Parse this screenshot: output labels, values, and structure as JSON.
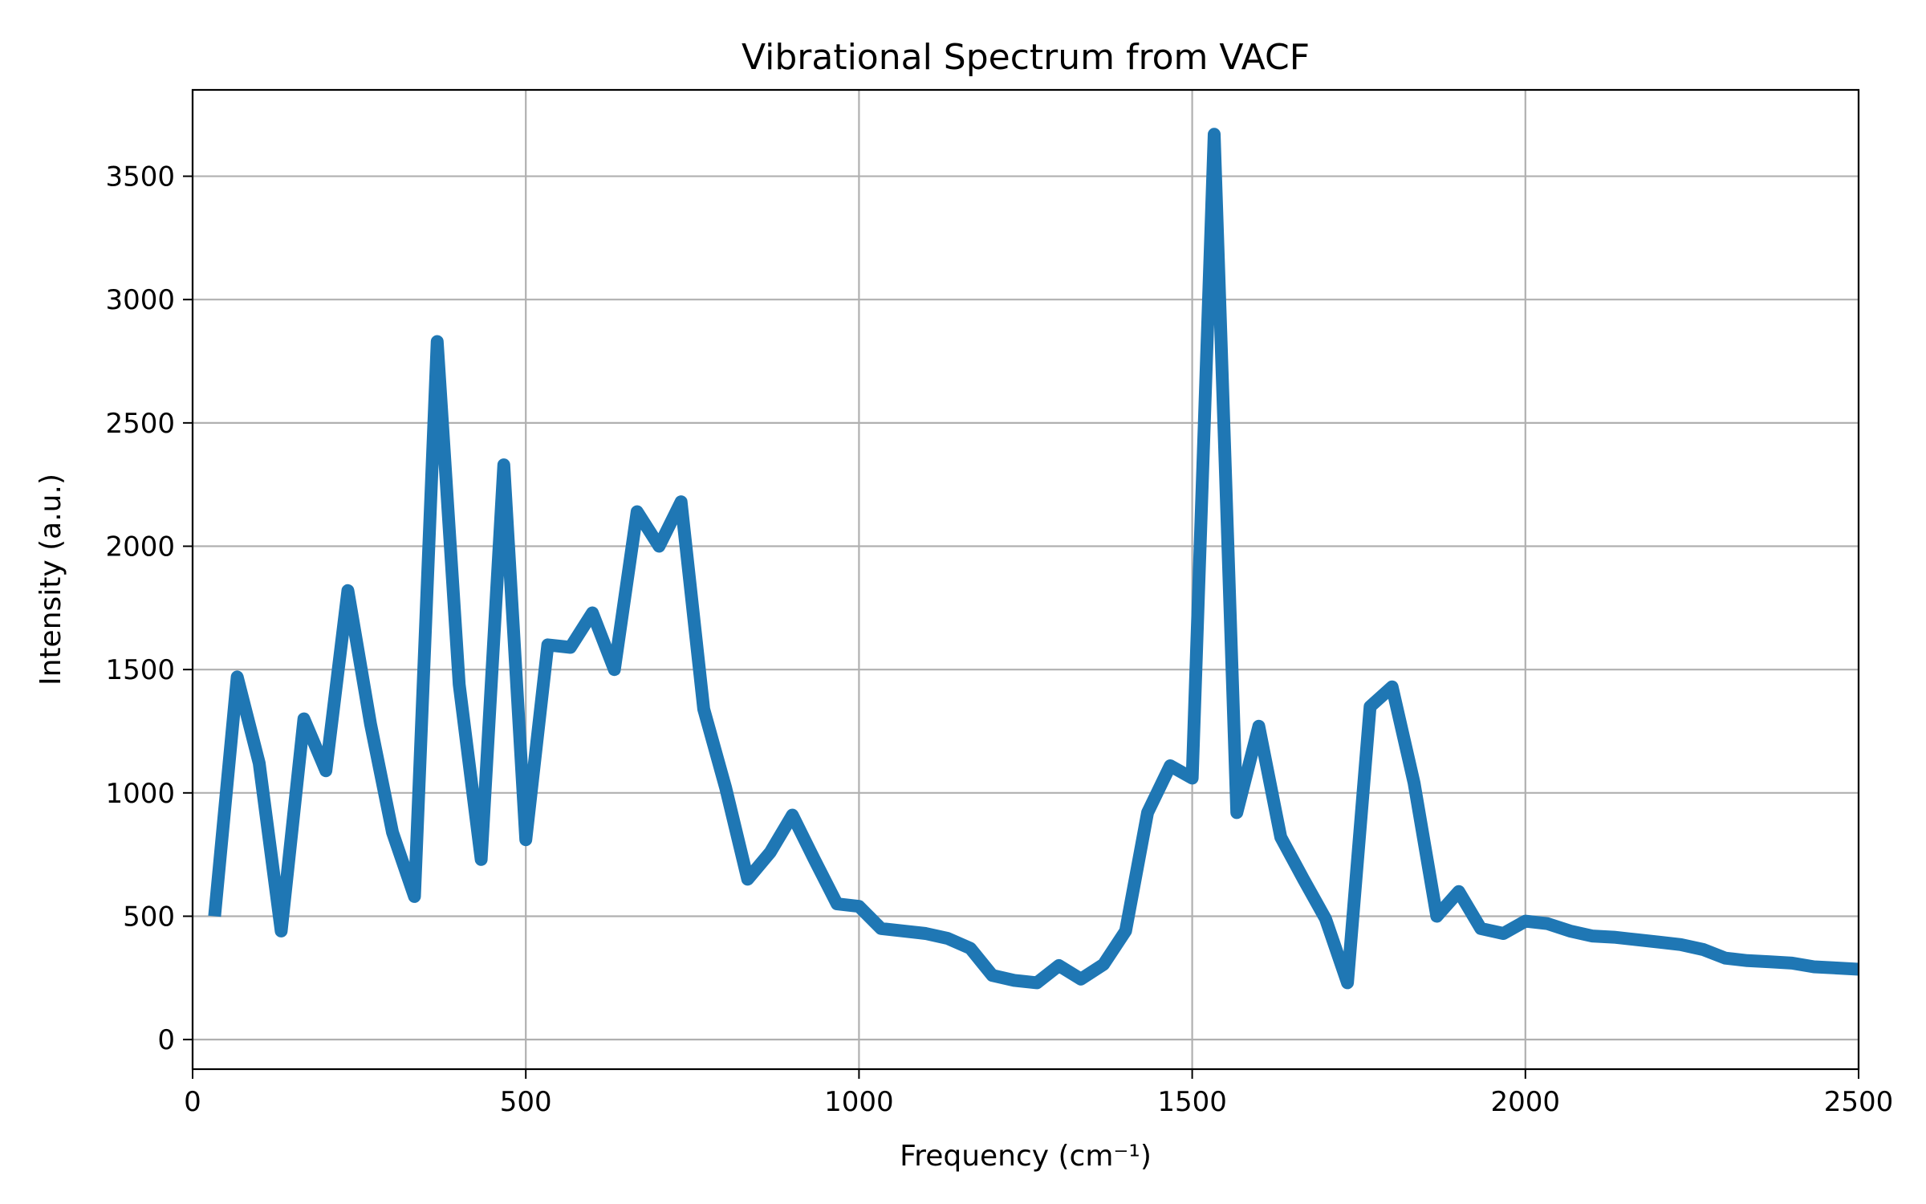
{
  "chart_data": {
    "type": "line",
    "title": "Vibrational Spectrum from VACF",
    "xlabel": "Frequency (cm⁻¹)",
    "ylabel": "Intensity (a.u.)",
    "xlim": [
      0,
      2500
    ],
    "ylim": [
      -120,
      3850
    ],
    "xticks": [
      0,
      500,
      1000,
      1500,
      2000,
      2500
    ],
    "yticks": [
      0,
      500,
      1000,
      1500,
      2000,
      2500,
      3000,
      3500
    ],
    "grid": true,
    "colors": {
      "line": "#1f77b4",
      "grid": "#b0b0b0",
      "axis": "#000000",
      "background": "#ffffff"
    },
    "series": [
      {
        "x": [
          33,
          67,
          100,
          133,
          167,
          200,
          233,
          267,
          300,
          333,
          367,
          400,
          433,
          467,
          500,
          533,
          567,
          600,
          633,
          667,
          700,
          733,
          767,
          800,
          833,
          867,
          900,
          933,
          967,
          1000,
          1033,
          1067,
          1100,
          1133,
          1167,
          1200,
          1233,
          1267,
          1300,
          1333,
          1367,
          1400,
          1433,
          1467,
          1500,
          1533,
          1567,
          1600,
          1633,
          1667,
          1700,
          1733,
          1767,
          1800,
          1833,
          1867,
          1900,
          1933,
          1967,
          2000,
          2033,
          2067,
          2100,
          2133,
          2167,
          2200,
          2233,
          2267,
          2300,
          2333,
          2367,
          2400,
          2433,
          2467,
          2500
        ],
        "y": [
          500,
          1470,
          1120,
          440,
          1300,
          1090,
          1820,
          1280,
          840,
          580,
          2830,
          1440,
          730,
          2330,
          810,
          1600,
          1590,
          1730,
          1500,
          2140,
          2000,
          2180,
          1340,
          1020,
          650,
          760,
          910,
          730,
          550,
          540,
          450,
          440,
          430,
          410,
          370,
          260,
          240,
          230,
          300,
          245,
          305,
          440,
          920,
          1110,
          1060,
          3670,
          920,
          1270,
          820,
          650,
          490,
          230,
          1350,
          1430,
          1040,
          500,
          600,
          450,
          430,
          480,
          470,
          440,
          420,
          415,
          405,
          395,
          385,
          365,
          330,
          320,
          315,
          310,
          295,
          290,
          285
        ]
      }
    ]
  }
}
